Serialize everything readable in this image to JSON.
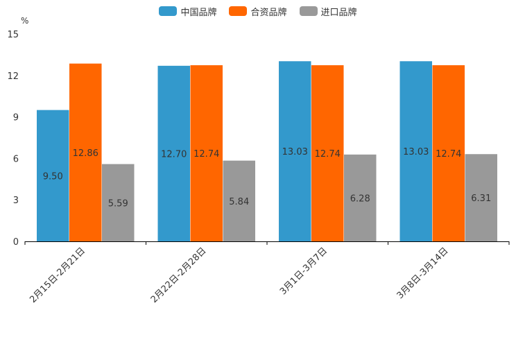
{
  "chart_data": {
    "type": "bar",
    "title": "",
    "ylabel": "%",
    "xlabel": "",
    "ylim": [
      0,
      15
    ],
    "yticks": [
      0,
      3,
      6,
      9,
      12,
      15
    ],
    "categories": [
      "2月15日-2月21日",
      "2月22日-2月28日",
      "3月1日-3月7日",
      "3月8日-3月14日"
    ],
    "series": [
      {
        "name": "中国品牌",
        "color": "#3399cc",
        "values": [
          9.5,
          12.7,
          13.03,
          13.03
        ],
        "labels": [
          "9.50",
          "12.70",
          "13.03",
          "13.03"
        ]
      },
      {
        "name": "合资品牌",
        "color": "#ff6600",
        "values": [
          12.86,
          12.74,
          12.74,
          12.74
        ],
        "labels": [
          "12.86",
          "12.74",
          "12.74",
          "12.74"
        ]
      },
      {
        "name": "进口品牌",
        "color": "#999999",
        "values": [
          5.59,
          5.84,
          6.28,
          6.31
        ],
        "labels": [
          "5.59",
          "5.84",
          "6.28",
          "6.31"
        ]
      }
    ]
  }
}
